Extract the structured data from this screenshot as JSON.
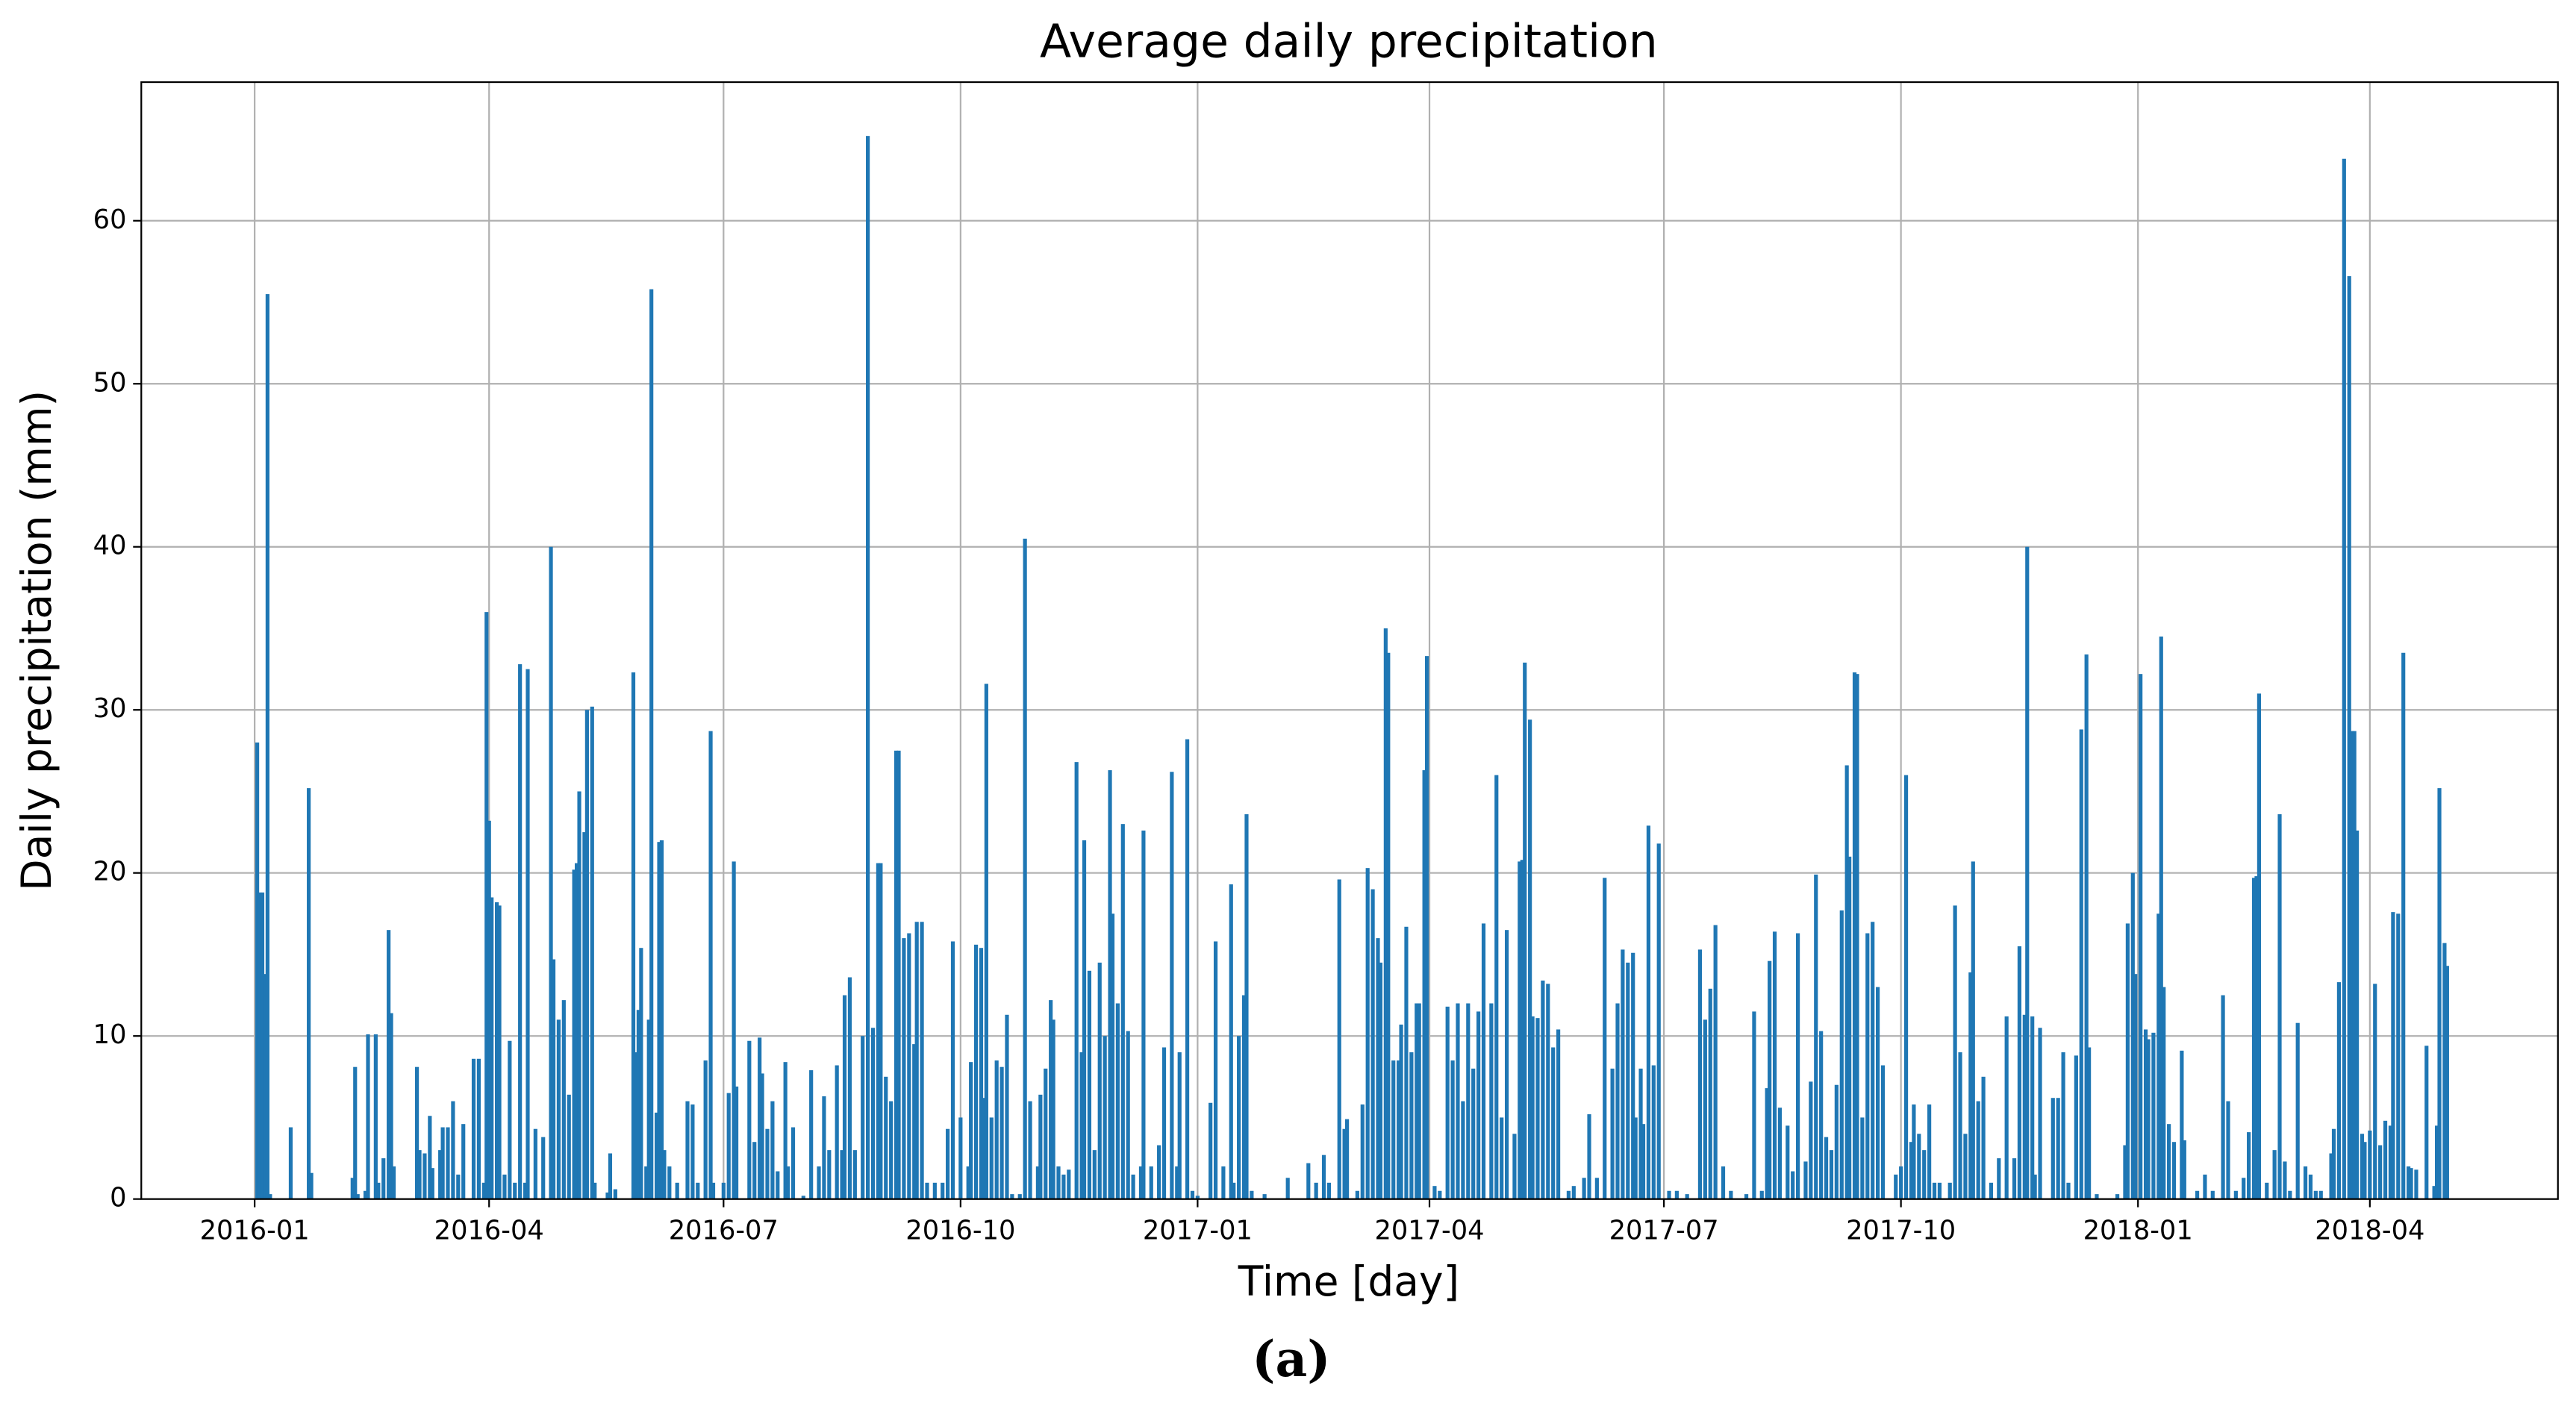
{
  "chart_data": {
    "type": "bar",
    "title": "Average daily precipitation",
    "xlabel": "Time [day]",
    "ylabel": "Daily precipitation (mm)",
    "caption": "(a)",
    "color": "#1f77b4",
    "grid": true,
    "xlim": [
      -44,
      894
    ],
    "ylim": [
      0,
      68.5
    ],
    "xticks": [
      {
        "value": 0,
        "label": "2016-01"
      },
      {
        "value": 91,
        "label": "2016-04"
      },
      {
        "value": 182,
        "label": "2016-07"
      },
      {
        "value": 274,
        "label": "2016-10"
      },
      {
        "value": 366,
        "label": "2017-01"
      },
      {
        "value": 456,
        "label": "2017-04"
      },
      {
        "value": 547,
        "label": "2017-07"
      },
      {
        "value": 639,
        "label": "2017-10"
      },
      {
        "value": 731,
        "label": "2018-01"
      },
      {
        "value": 821,
        "label": "2018-04"
      }
    ],
    "yticks": [
      0,
      10,
      20,
      30,
      40,
      50,
      60
    ],
    "x": [
      1,
      2,
      3,
      4,
      5,
      6,
      14,
      21,
      22,
      38,
      39,
      40,
      43,
      44,
      47,
      48,
      50,
      52,
      53,
      54,
      63,
      64,
      66,
      68,
      69,
      72,
      73,
      75,
      77,
      79,
      81,
      85,
      87,
      89,
      90,
      91,
      92,
      94,
      95,
      97,
      99,
      101,
      103,
      105,
      106,
      109,
      112,
      115,
      116,
      118,
      120,
      122,
      124,
      125,
      126,
      128,
      129,
      131,
      132,
      137,
      138,
      140,
      147,
      148,
      149,
      150,
      152,
      153,
      154,
      156,
      157,
      158,
      159,
      161,
      164,
      168,
      170,
      172,
      175,
      177,
      178,
      182,
      184,
      186,
      187,
      192,
      194,
      196,
      197,
      199,
      201,
      203,
      206,
      207,
      209,
      213,
      216,
      219,
      221,
      223,
      226,
      228,
      229,
      231,
      233,
      236,
      238,
      240,
      242,
      243,
      245,
      247,
      249,
      250,
      252,
      254,
      256,
      257,
      259,
      261,
      264,
      267,
      269,
      271,
      274,
      277,
      278,
      280,
      282,
      283,
      284,
      286,
      288,
      290,
      292,
      294,
      297,
      299,
      301,
      304,
      305,
      307,
      309,
      310,
      312,
      314,
      316,
      319,
      321,
      322,
      324,
      326,
      328,
      330,
      332,
      333,
      335,
      337,
      339,
      341,
      344,
      345,
      348,
      351,
      353,
      356,
      358,
      359,
      362,
      364,
      366,
      371,
      373,
      376,
      379,
      380,
      382,
      384,
      385,
      387,
      392,
      401,
      409,
      412,
      415,
      417,
      421,
      423,
      424,
      428,
      430,
      432,
      434,
      436,
      437,
      439,
      440,
      442,
      444,
      445,
      447,
      449,
      451,
      452,
      454,
      455,
      458,
      460,
      463,
      465,
      467,
      469,
      471,
      473,
      475,
      477,
      480,
      482,
      484,
      486,
      489,
      491,
      492,
      493,
      495,
      496,
      498,
      500,
      502,
      504,
      506,
      510,
      512,
      516,
      518,
      521,
      524,
      527,
      529,
      531,
      533,
      535,
      536,
      538,
      539,
      541,
      543,
      545,
      549,
      552,
      556,
      561,
      563,
      565,
      567,
      570,
      573,
      579,
      582,
      585,
      587,
      588,
      590,
      592,
      595,
      597,
      599,
      602,
      604,
      606,
      608,
      610,
      612,
      614,
      616,
      618,
      619,
      621,
      622,
      624,
      626,
      628,
      630,
      632,
      637,
      639,
      641,
      643,
      644,
      646,
      648,
      650,
      652,
      654,
      658,
      660,
      662,
      664,
      666,
      667,
      669,
      671,
      674,
      677,
      680,
      683,
      685,
      687,
      688,
      690,
      691,
      693,
      698,
      700,
      702,
      704,
      707,
      709,
      711,
      712,
      715,
      723,
      726,
      727,
      729,
      730,
      732,
      734,
      735,
      737,
      739,
      740,
      741,
      743,
      745,
      748,
      749,
      754,
      757,
      760,
      764,
      766,
      769,
      772,
      774,
      776,
      777,
      778,
      781,
      784,
      786,
      788,
      790,
      793,
      796,
      798,
      800,
      802,
      806,
      807,
      809,
      811,
      813,
      814,
      815,
      816,
      818,
      819,
      821,
      823,
      825,
      827,
      829,
      830,
      832,
      834,
      836,
      837,
      839,
      843,
      846,
      847,
      848,
      850,
      851
    ],
    "values": [
      28,
      18.8,
      18.8,
      13.8,
      55.5,
      0.3,
      4.4,
      25.2,
      1.6,
      1.3,
      8.1,
      0.3,
      0.5,
      10.1,
      10.1,
      1,
      2.5,
      16.5,
      11.4,
      2,
      8.1,
      3,
      2.8,
      5.1,
      1.9,
      3,
      4.4,
      4.4,
      6,
      1.5,
      4.6,
      8.6,
      8.6,
      1,
      36,
      23.2,
      18.5,
      18.2,
      18,
      1.5,
      9.7,
      1,
      32.8,
      1,
      32.5,
      4.3,
      3.8,
      40,
      14.7,
      11,
      12.2,
      6.4,
      20.2,
      20.6,
      25,
      22.5,
      30,
      30.2,
      1,
      0.4,
      2.8,
      0.6,
      32.3,
      9,
      11.6,
      15.4,
      2,
      11,
      55.8,
      5.3,
      21.9,
      22,
      3,
      2,
      1,
      6,
      5.8,
      1,
      8.5,
      28.7,
      1,
      1,
      6.5,
      20.7,
      6.9,
      9.7,
      3.5,
      9.9,
      7.7,
      4.3,
      6,
      1.7,
      8.4,
      2,
      4.4,
      0.2,
      7.9,
      2,
      6.3,
      3,
      8.2,
      3,
      12.5,
      13.6,
      3,
      10,
      65.2,
      10.5,
      20.6,
      20.6,
      7.5,
      6,
      27.5,
      27.5,
      16,
      16.3,
      9.5,
      17,
      17,
      1,
      1,
      1,
      4.3,
      15.8,
      5,
      2,
      8.4,
      15.6,
      15.4,
      6.2,
      31.6,
      5,
      8.5,
      8.1,
      11.3,
      0.3,
      0.3,
      40.5,
      6,
      2,
      6.4,
      8,
      12.2,
      11,
      2,
      1.5,
      1.8,
      26.8,
      9,
      22,
      14,
      3,
      14.5,
      10,
      26.3,
      17.5,
      12,
      23,
      10.3,
      1.5,
      2,
      22.6,
      2,
      3.3,
      9.3,
      26.2,
      2,
      9,
      28.2,
      0.5,
      0.2,
      5.9,
      15.8,
      2,
      19.3,
      1,
      10,
      12.5,
      23.6,
      0.5,
      0.3,
      1.3,
      2.2,
      1,
      2.7,
      1,
      19.6,
      4.3,
      4.9,
      0.5,
      5.8,
      20.3,
      19,
      16,
      14.5,
      35,
      33.5,
      8.5,
      8.5,
      10.7,
      16.7,
      9,
      12,
      12,
      26.3,
      33.3,
      0.8,
      0.5,
      11.8,
      8.5,
      12,
      6,
      12,
      8,
      11.5,
      16.9,
      12,
      26,
      5,
      16.5,
      4,
      20.7,
      20.8,
      32.9,
      29.4,
      11.2,
      11.1,
      13.4,
      13.2,
      9.3,
      10.4,
      0.5,
      0.8,
      1.3,
      5.2,
      1.3,
      19.7,
      8,
      12,
      15.3,
      14.5,
      15.1,
      5,
      8,
      4.6,
      22.9,
      8.2,
      21.8,
      0.5,
      0.5,
      0.3,
      15.3,
      11,
      12.9,
      16.8,
      2,
      0.5,
      0.3,
      11.5,
      0.5,
      6.8,
      14.6,
      16.4,
      5.6,
      4.5,
      1.7,
      16.3,
      2.3,
      7.2,
      19.9,
      10.3,
      3.8,
      3,
      7,
      17.7,
      26.6,
      21,
      32.3,
      32.2,
      5,
      16.3,
      17,
      13,
      8.2,
      1.5,
      2,
      26,
      3.5,
      5.8,
      4,
      3,
      5.8,
      1,
      1,
      1,
      18,
      9,
      4,
      13.9,
      20.7,
      6,
      7.5,
      1,
      2.5,
      11.2,
      2.5,
      15.5,
      11.3,
      40,
      11.2,
      1.5,
      10.5,
      6.2,
      6.2,
      9,
      1,
      8.8,
      28.8,
      33.4,
      9.3,
      0.3,
      0.3,
      3.3,
      16.9,
      20,
      13.8,
      32.2,
      10.4,
      9.8,
      10.2,
      17.5,
      34.5,
      13,
      4.6,
      3.5,
      9.1,
      3.6,
      0.5,
      1.5,
      0.5,
      12.5,
      6,
      0.5,
      1.3,
      4.1,
      19.7,
      19.8,
      31,
      1,
      3,
      23.6,
      2.3,
      0.5,
      10.8,
      2,
      1.5,
      0.5,
      0.5,
      2.8,
      4.3,
      13.3,
      63.8,
      56.6,
      28.7,
      28.7,
      22.6,
      4,
      3.5,
      4.2,
      13.2,
      3.3,
      4.8,
      4.5,
      17.6,
      17.5,
      33.5,
      2,
      1.9,
      1.8,
      9.4,
      0.8,
      4.5,
      25.2,
      15.7,
      14.3
    ]
  }
}
